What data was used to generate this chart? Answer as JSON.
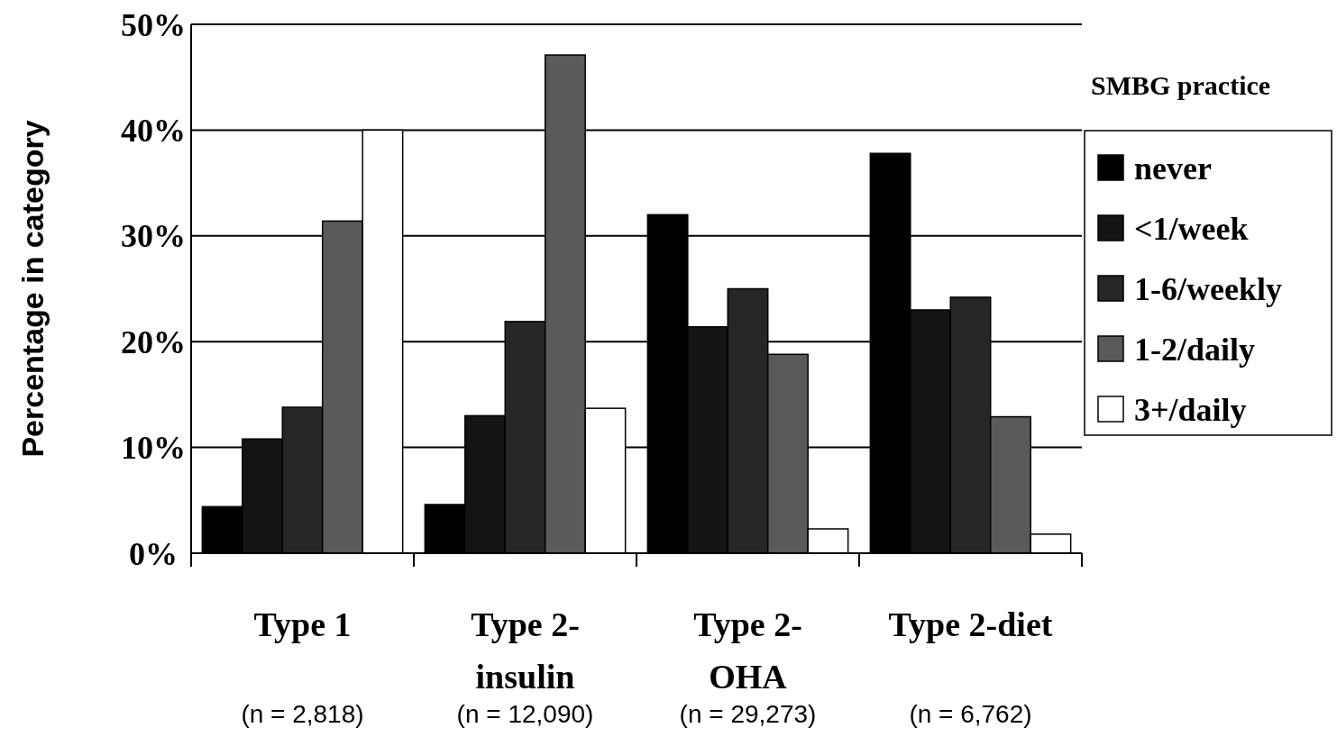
{
  "chart_data": {
    "type": "bar",
    "ylabel": "Percentage in category",
    "legend_title": "SMBG practice",
    "categories": [
      "Type 1\n(n = 2,818)",
      "Type 2-\ninsulin\n(n = 12,090)",
      "Type 2-\nOHA\n(n = 29,273)",
      "Type 2-diet\n(n = 6,762)"
    ],
    "series": [
      {
        "name": "never",
        "color": "#000000",
        "values": [
          4.4,
          4.6,
          32.0,
          37.8
        ]
      },
      {
        "name": "<1/week",
        "color": "#141414",
        "values": [
          10.8,
          13.0,
          21.4,
          23.0
        ]
      },
      {
        "name": "1-6/weekly",
        "color": "#262626",
        "values": [
          13.8,
          21.9,
          25.0,
          24.2
        ]
      },
      {
        "name": "1-2/daily",
        "color": "#5a5a5a",
        "values": [
          31.4,
          47.1,
          18.8,
          12.9
        ]
      },
      {
        "name": "3+/daily",
        "color": "#ffffff",
        "values": [
          40.0,
          13.7,
          2.3,
          1.8
        ]
      }
    ],
    "ylim": [
      0,
      50
    ],
    "yticks": [
      {
        "value": 0,
        "label": "0%"
      },
      {
        "value": 10,
        "label": "10%"
      },
      {
        "value": 20,
        "label": "20%"
      },
      {
        "value": 30,
        "label": "30%"
      },
      {
        "value": 40,
        "label": "40%"
      },
      {
        "value": 50,
        "label": "50%"
      }
    ],
    "grid": "y",
    "legend": "right"
  }
}
